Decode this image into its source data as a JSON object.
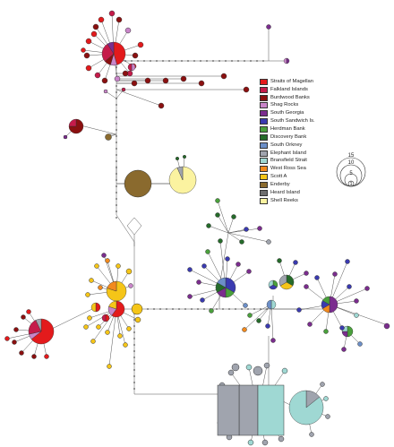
{
  "legend": {
    "items": [
      {
        "label": "Straits of Magellan",
        "color": "#e31a1c"
      },
      {
        "label": "Falkland Islands",
        "color": "#c51b4a"
      },
      {
        "label": "Burdwood Banks",
        "color": "#8b1010"
      },
      {
        "label": "Shag Rocks",
        "color": "#c985c9"
      },
      {
        "label": "South Georgia",
        "color": "#7b2d8e"
      },
      {
        "label": "South Sandwich Is.",
        "color": "#3a3ab0"
      },
      {
        "label": "Herdman Bank",
        "color": "#4aa03c"
      },
      {
        "label": "Discovery Bank",
        "color": "#256b2a"
      },
      {
        "label": "South Orkney",
        "color": "#6c8fc8"
      },
      {
        "label": "Elephant Island",
        "color": "#a0a4ae"
      },
      {
        "label": "Bransfield Strait",
        "color": "#9fd8d3"
      },
      {
        "label": "West Ross Sea",
        "color": "#f28a1e"
      },
      {
        "label": "Scott A",
        "color": "#f5c518"
      },
      {
        "label": "Enderby",
        "color": "#8a6a2e"
      },
      {
        "label": "Heard Island",
        "color": "#6e6e6e"
      },
      {
        "label": "Shell Reeks",
        "color": "#fbf3a0"
      }
    ]
  },
  "scale": {
    "labels": [
      "15",
      "10",
      "5",
      "1"
    ]
  }
}
